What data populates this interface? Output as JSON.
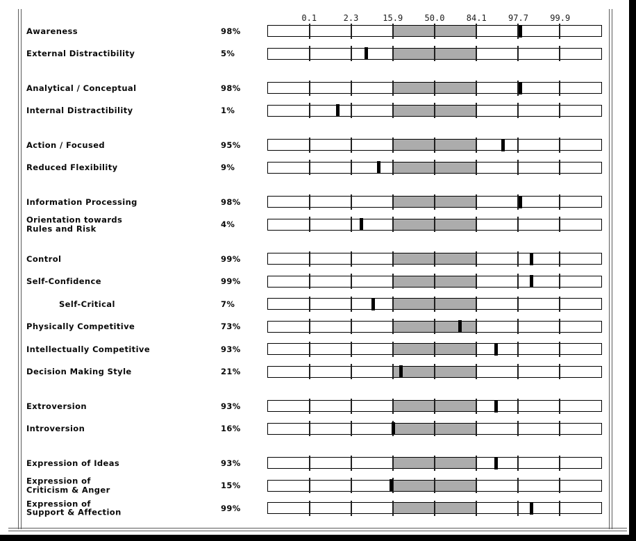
{
  "page": {
    "background": "#ffffff",
    "frame_color": "#5a5a5a",
    "edge_bar_color": "#000000"
  },
  "chart_data": {
    "type": "bar",
    "title": "",
    "xlabel": "",
    "ylabel": "",
    "axis": {
      "kind": "normal-distribution percentile scale (linear in z, -4 SD to +4 SD)",
      "tick_labels": [
        "0.1",
        "2.3",
        "15.9",
        "50.0",
        "84.1",
        "97.7",
        "99.9"
      ],
      "shaded_range_ticks": [
        "15.9",
        "84.1"
      ],
      "shaded_color": "#acacac",
      "marker_color": "#000000",
      "grid": false
    },
    "groups": [
      {
        "rows": [
          {
            "label": "Awareness",
            "percent": 98,
            "percent_label": "98%"
          },
          {
            "label": "External Distractibility",
            "percent": 5,
            "percent_label": "5%"
          }
        ]
      },
      {
        "rows": [
          {
            "label": "Analytical / Conceptual",
            "percent": 98,
            "percent_label": "98%"
          },
          {
            "label": "Internal Distractibility",
            "percent": 1,
            "percent_label": "1%"
          }
        ]
      },
      {
        "rows": [
          {
            "label": "Action / Focused",
            "percent": 95,
            "percent_label": "95%"
          },
          {
            "label": "Reduced Flexibility",
            "percent": 9,
            "percent_label": "9%"
          }
        ]
      },
      {
        "rows": [
          {
            "label": "Information Processing",
            "percent": 98,
            "percent_label": "98%"
          },
          {
            "label": "Orientation towards\nRules and Risk",
            "percent": 4,
            "percent_label": "4%"
          }
        ]
      },
      {
        "rows": [
          {
            "label": "Control",
            "percent": 99,
            "percent_label": "99%"
          },
          {
            "label": "Self-Confidence",
            "percent": 99,
            "percent_label": "99%"
          },
          {
            "label": "Self-Critical",
            "percent": 7,
            "percent_label": "7%",
            "indent": true
          },
          {
            "label": "Physically Competitive",
            "percent": 73,
            "percent_label": "73%"
          },
          {
            "label": "Intellectually Competitive",
            "percent": 93,
            "percent_label": "93%"
          },
          {
            "label": "Decision Making Style",
            "percent": 21,
            "percent_label": "21%"
          }
        ]
      },
      {
        "rows": [
          {
            "label": "Extroversion",
            "percent": 93,
            "percent_label": "93%"
          },
          {
            "label": "Introversion",
            "percent": 16,
            "percent_label": "16%"
          }
        ]
      },
      {
        "rows": [
          {
            "label": "Expression of Ideas",
            "percent": 93,
            "percent_label": "93%"
          },
          {
            "label": "Expression of\nCriticism & Anger",
            "percent": 15,
            "percent_label": "15%"
          },
          {
            "label": "Expression of\nSupport & Affection",
            "percent": 99,
            "percent_label": "99%"
          }
        ]
      }
    ]
  }
}
